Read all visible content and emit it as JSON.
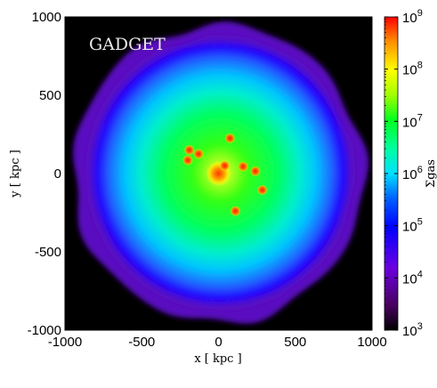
{
  "chart_data": {
    "type": "heatmap",
    "annotation": "GADGET",
    "xlabel": "x [ kpc ]",
    "ylabel": "y [ kpc ]",
    "colorbar_label": "Σgas",
    "xlim": [
      -1000,
      1000
    ],
    "ylim": [
      -1000,
      1000
    ],
    "x_ticks": [
      -1000,
      -500,
      0,
      500,
      1000
    ],
    "y_ticks": [
      -1000,
      -500,
      0,
      500,
      1000
    ],
    "x_tick_labels": [
      "-1000",
      "-500",
      "0",
      "500",
      "1000"
    ],
    "y_tick_labels": [
      "-1000",
      "-500",
      "0",
      "500",
      "1000"
    ],
    "colorbar": {
      "scale": "log",
      "range": [
        1000,
        1000000000
      ],
      "ticks": [
        {
          "value": 1000000000,
          "base": "10",
          "exp": "9"
        },
        {
          "value": 100000000,
          "base": "10",
          "exp": "8"
        },
        {
          "value": 10000000,
          "base": "10",
          "exp": "7"
        },
        {
          "value": 1000000,
          "base": "10",
          "exp": "6"
        },
        {
          "value": 100000,
          "base": "10",
          "exp": "5"
        },
        {
          "value": 10000,
          "base": "10",
          "exp": "4"
        },
        {
          "value": 1000,
          "base": "10",
          "exp": "3"
        }
      ],
      "colors": [
        "#000000",
        "#7a0090",
        "#0000ff",
        "#00e0ff",
        "#00ff40",
        "#ffff00",
        "#ff0000"
      ]
    },
    "gas_halo": {
      "center": [
        0,
        0
      ],
      "outer_radius_kpc": 950,
      "background_color": "#000000"
    },
    "clumps": [
      {
        "x": 0,
        "y": 0
      },
      {
        "x": 40,
        "y": 50
      },
      {
        "x": 75,
        "y": 225
      },
      {
        "x": 160,
        "y": 45
      },
      {
        "x": 240,
        "y": 15
      },
      {
        "x": 285,
        "y": -105
      },
      {
        "x": 110,
        "y": -240
      },
      {
        "x": -190,
        "y": 150
      },
      {
        "x": -130,
        "y": 125
      },
      {
        "x": -200,
        "y": 85
      }
    ]
  }
}
